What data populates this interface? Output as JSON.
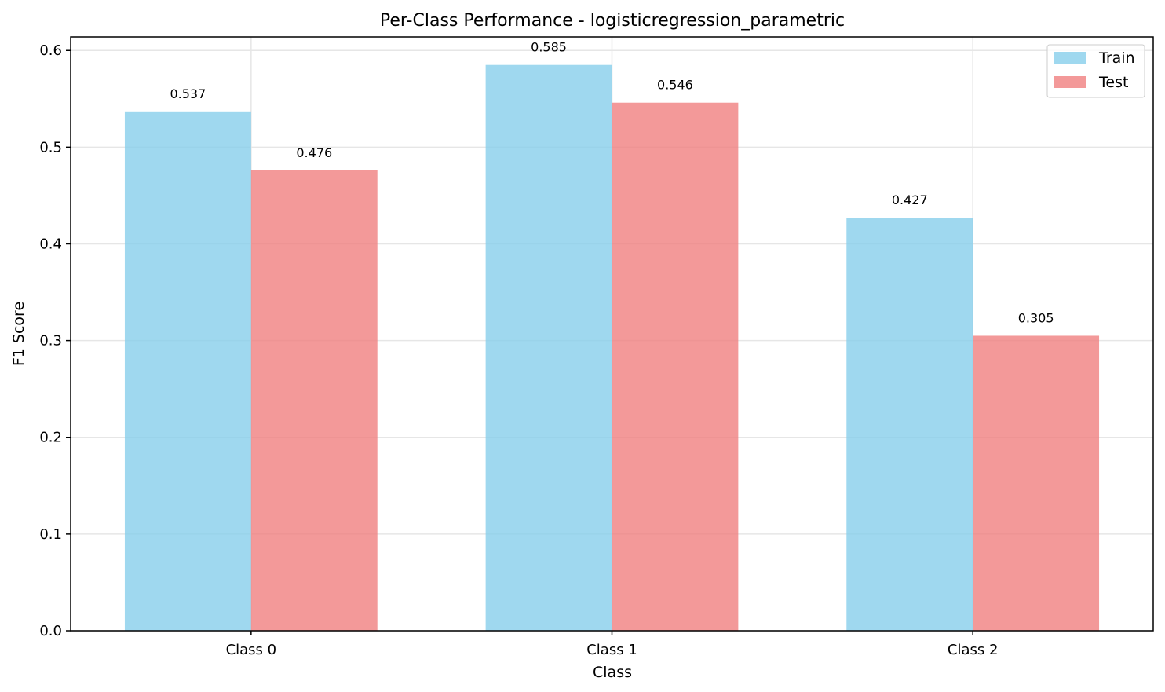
{
  "chart_data": {
    "type": "bar",
    "title": "Per-Class Performance - logisticregression_parametric",
    "xlabel": "Class",
    "ylabel": "F1 Score",
    "categories": [
      "Class 0",
      "Class 1",
      "Class 2"
    ],
    "series": [
      {
        "name": "Train",
        "values": [
          0.537,
          0.585,
          0.427
        ],
        "color": "#87ceeb"
      },
      {
        "name": "Test",
        "values": [
          0.476,
          0.546,
          0.305
        ],
        "color": "#f08080"
      }
    ],
    "data_labels": [
      [
        "0.537",
        "0.585",
        "0.427"
      ],
      [
        "0.476",
        "0.546",
        "0.305"
      ]
    ],
    "ylim": [
      0,
      0.614
    ],
    "yticks": [
      "0.0",
      "0.1",
      "0.2",
      "0.3",
      "0.4",
      "0.5",
      "0.6"
    ],
    "grid": true,
    "legend_position": "top-right"
  }
}
